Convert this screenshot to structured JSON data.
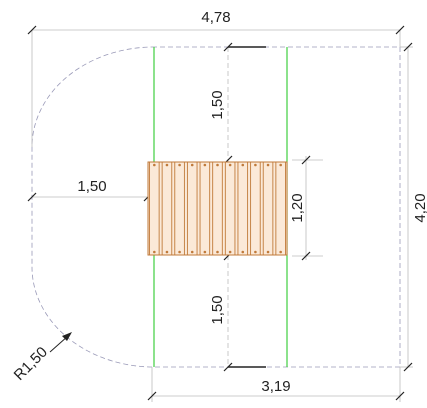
{
  "dimensions": {
    "overall_width": "4,78",
    "overall_height": "4,20",
    "top_clearance": "1,50",
    "bottom_clearance": "1,50",
    "left_clearance": "1,50",
    "equipment_depth": "1,20",
    "bottom_width": "3,19",
    "radius": "R1,50"
  },
  "colors": {
    "boundary": "#9a9ab8",
    "dimension_line": "#bbbbbb",
    "zone_line": "#3fcf3f",
    "equipment": "#c07a3a",
    "equipment_fill": "#fbe9d8",
    "tick": "#222222"
  },
  "equipment": {
    "slat_count": 11
  }
}
